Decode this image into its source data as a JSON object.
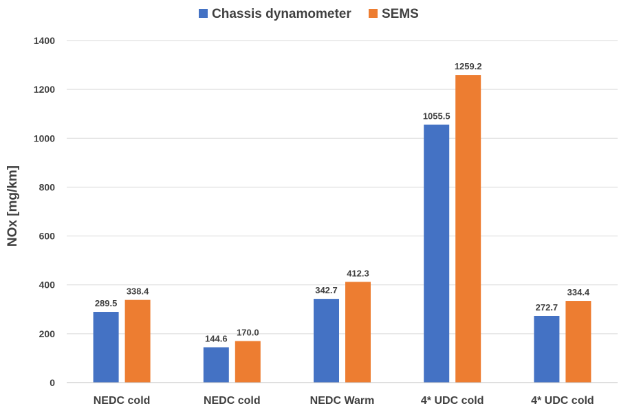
{
  "chart_data": {
    "type": "bar",
    "title": "",
    "xlabel": "",
    "ylabel": "NOx [mg/km]",
    "ylim": [
      0,
      1400
    ],
    "yticks": [
      0,
      200,
      400,
      600,
      800,
      1000,
      1200,
      1400
    ],
    "grid": true,
    "legend_position": "top-center",
    "categories": [
      "NEDC cold",
      "NEDC cold",
      "NEDC Warm",
      "4* UDC cold",
      "4* UDC cold"
    ],
    "series": [
      {
        "name": "Chassis dynamometer",
        "color": "#4472C4",
        "values": [
          289.5,
          144.6,
          342.7,
          1055.5,
          272.7
        ],
        "labels": [
          "289.5",
          "144.6",
          "342.7",
          "1055.5",
          "272.7"
        ]
      },
      {
        "name": "SEMS",
        "color": "#ED7D31",
        "values": [
          338.4,
          170.0,
          412.3,
          1259.2,
          334.4
        ],
        "labels": [
          "338.4",
          "170.0",
          "412.3",
          "1259.2",
          "334.4"
        ]
      }
    ]
  }
}
